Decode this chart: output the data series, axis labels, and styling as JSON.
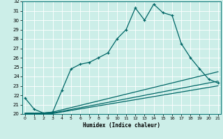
{
  "xlabel": "Humidex (Indice chaleur)",
  "background_color": "#cceee8",
  "line_color": "#006666",
  "x_min": 0,
  "x_max": 21,
  "y_min": 20,
  "y_max": 32,
  "main_line_x": [
    0,
    1,
    2,
    3,
    4,
    5,
    6,
    7,
    8,
    9,
    10,
    11,
    12,
    13,
    14,
    15,
    16,
    17,
    18,
    19,
    20,
    21
  ],
  "main_line_y": [
    21.7,
    20.5,
    20.1,
    20.2,
    22.5,
    24.8,
    25.3,
    25.5,
    26.0,
    26.5,
    28.0,
    29.0,
    31.3,
    30.0,
    31.7,
    30.8,
    30.5,
    27.5,
    26.0,
    24.8,
    23.7,
    23.3
  ],
  "line2_x": [
    0,
    1,
    2,
    3,
    21
  ],
  "line2_y": [
    20.1,
    20.1,
    20.1,
    20.2,
    24.5
  ],
  "line3_x": [
    0,
    1,
    2,
    3,
    21
  ],
  "line3_y": [
    20.05,
    20.05,
    20.05,
    20.1,
    23.5
  ],
  "line4_x": [
    0,
    1,
    2,
    3,
    21
  ],
  "line4_y": [
    20.0,
    20.0,
    20.0,
    20.05,
    23.0
  ]
}
